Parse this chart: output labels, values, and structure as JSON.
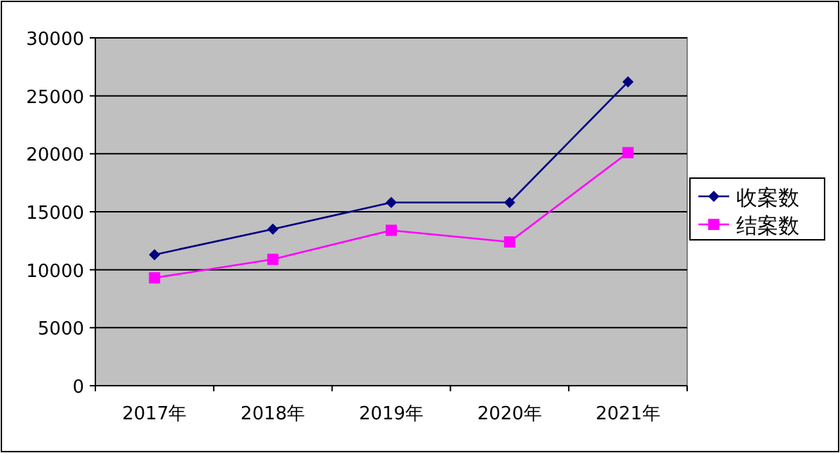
{
  "chart_data": {
    "type": "line",
    "categories": [
      "2017年",
      "2018年",
      "2019年",
      "2020年",
      "2021年"
    ],
    "series": [
      {
        "name": "收案数",
        "color": "#000080",
        "marker": "diamond",
        "values": [
          11300,
          13500,
          15800,
          15800,
          26200
        ]
      },
      {
        "name": "结案数",
        "color": "#ff00ff",
        "marker": "square",
        "values": [
          9300,
          10900,
          13400,
          12400,
          20100
        ]
      }
    ],
    "ylim": [
      0,
      30000
    ],
    "yticks": [
      0,
      5000,
      10000,
      15000,
      20000,
      25000,
      30000
    ],
    "grid": "y",
    "legend": "right"
  }
}
